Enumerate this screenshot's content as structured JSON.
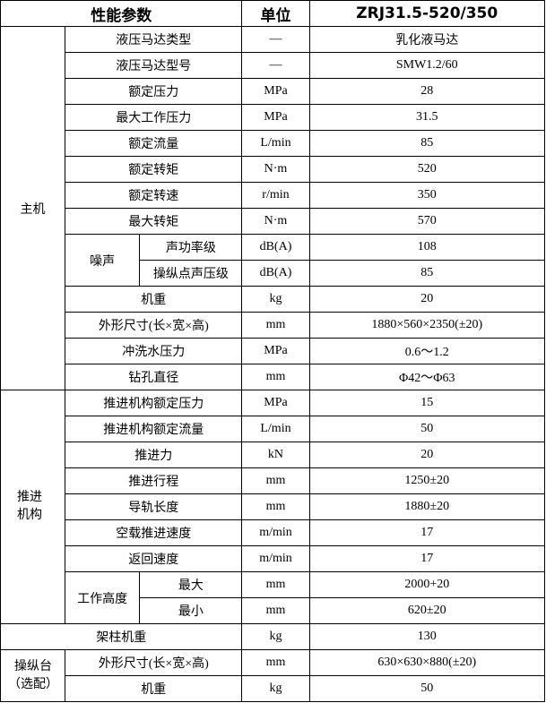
{
  "header": {
    "param": "性能参数",
    "unit": "单位",
    "model": "ZRJ31.5-520/350"
  },
  "main": {
    "label": "主机",
    "rows": [
      {
        "name": "液压马达类型",
        "unit": "—",
        "value": "乳化液马达"
      },
      {
        "name": "液压马达型号",
        "unit": "—",
        "value": "SMW1.2/60"
      },
      {
        "name": "额定压力",
        "unit": "MPa",
        "value": "28"
      },
      {
        "name": "最大工作压力",
        "unit": "MPa",
        "value": "31.5"
      },
      {
        "name": "额定流量",
        "unit": "L/min",
        "value": "85"
      },
      {
        "name": "额定转矩",
        "unit": "N·m",
        "value": "520"
      },
      {
        "name": "额定转速",
        "unit": "r/min",
        "value": "350"
      },
      {
        "name": "最大转矩",
        "unit": "N·m",
        "value": "570"
      }
    ],
    "noise": {
      "label": "噪声",
      "rows": [
        {
          "name": "声功率级",
          "unit": "dB(A)",
          "value": "108"
        },
        {
          "name": "操纵点声压级",
          "unit": "dB(A)",
          "value": "85"
        }
      ]
    },
    "rows2": [
      {
        "name": "机重",
        "unit": "kg",
        "value": "20"
      },
      {
        "name": "外形尺寸(长×宽×高)",
        "unit": "mm",
        "value": "1880×560×2350(±20)"
      },
      {
        "name": "冲洗水压力",
        "unit": "MPa",
        "value": "0.6～1.2"
      },
      {
        "name": "钻孔直径",
        "unit": "mm",
        "value": "Φ42～Φ63"
      }
    ]
  },
  "feed": {
    "label": "推进机构",
    "rows": [
      {
        "name": "推进机构额定压力",
        "unit": "MPa",
        "value": "15"
      },
      {
        "name": "推进机构额定流量",
        "unit": "L/min",
        "value": "50"
      },
      {
        "name": "推进力",
        "unit": "kN",
        "value": "20"
      },
      {
        "name": "推进行程",
        "unit": "mm",
        "value": "1250±20"
      },
      {
        "name": "导轨长度",
        "unit": "mm",
        "value": "1880±20"
      },
      {
        "name": "空载推进速度",
        "unit": "m/min",
        "value": "17"
      },
      {
        "name": "返回速度",
        "unit": "m/min",
        "value": "17"
      }
    ],
    "height": {
      "label": "工作高度",
      "rows": [
        {
          "name": "最大",
          "unit": "mm",
          "value": "2000+20"
        },
        {
          "name": "最小",
          "unit": "mm",
          "value": "620±20"
        }
      ]
    }
  },
  "column": {
    "name": "架柱机重",
    "unit": "kg",
    "value": "130"
  },
  "console": {
    "label": "操纵台（选配）",
    "rows": [
      {
        "name": "外形尺寸(长×宽×高)",
        "unit": "mm",
        "value": "630×630×880(±20)"
      },
      {
        "name": "机重",
        "unit": "kg",
        "value": "50"
      }
    ]
  }
}
